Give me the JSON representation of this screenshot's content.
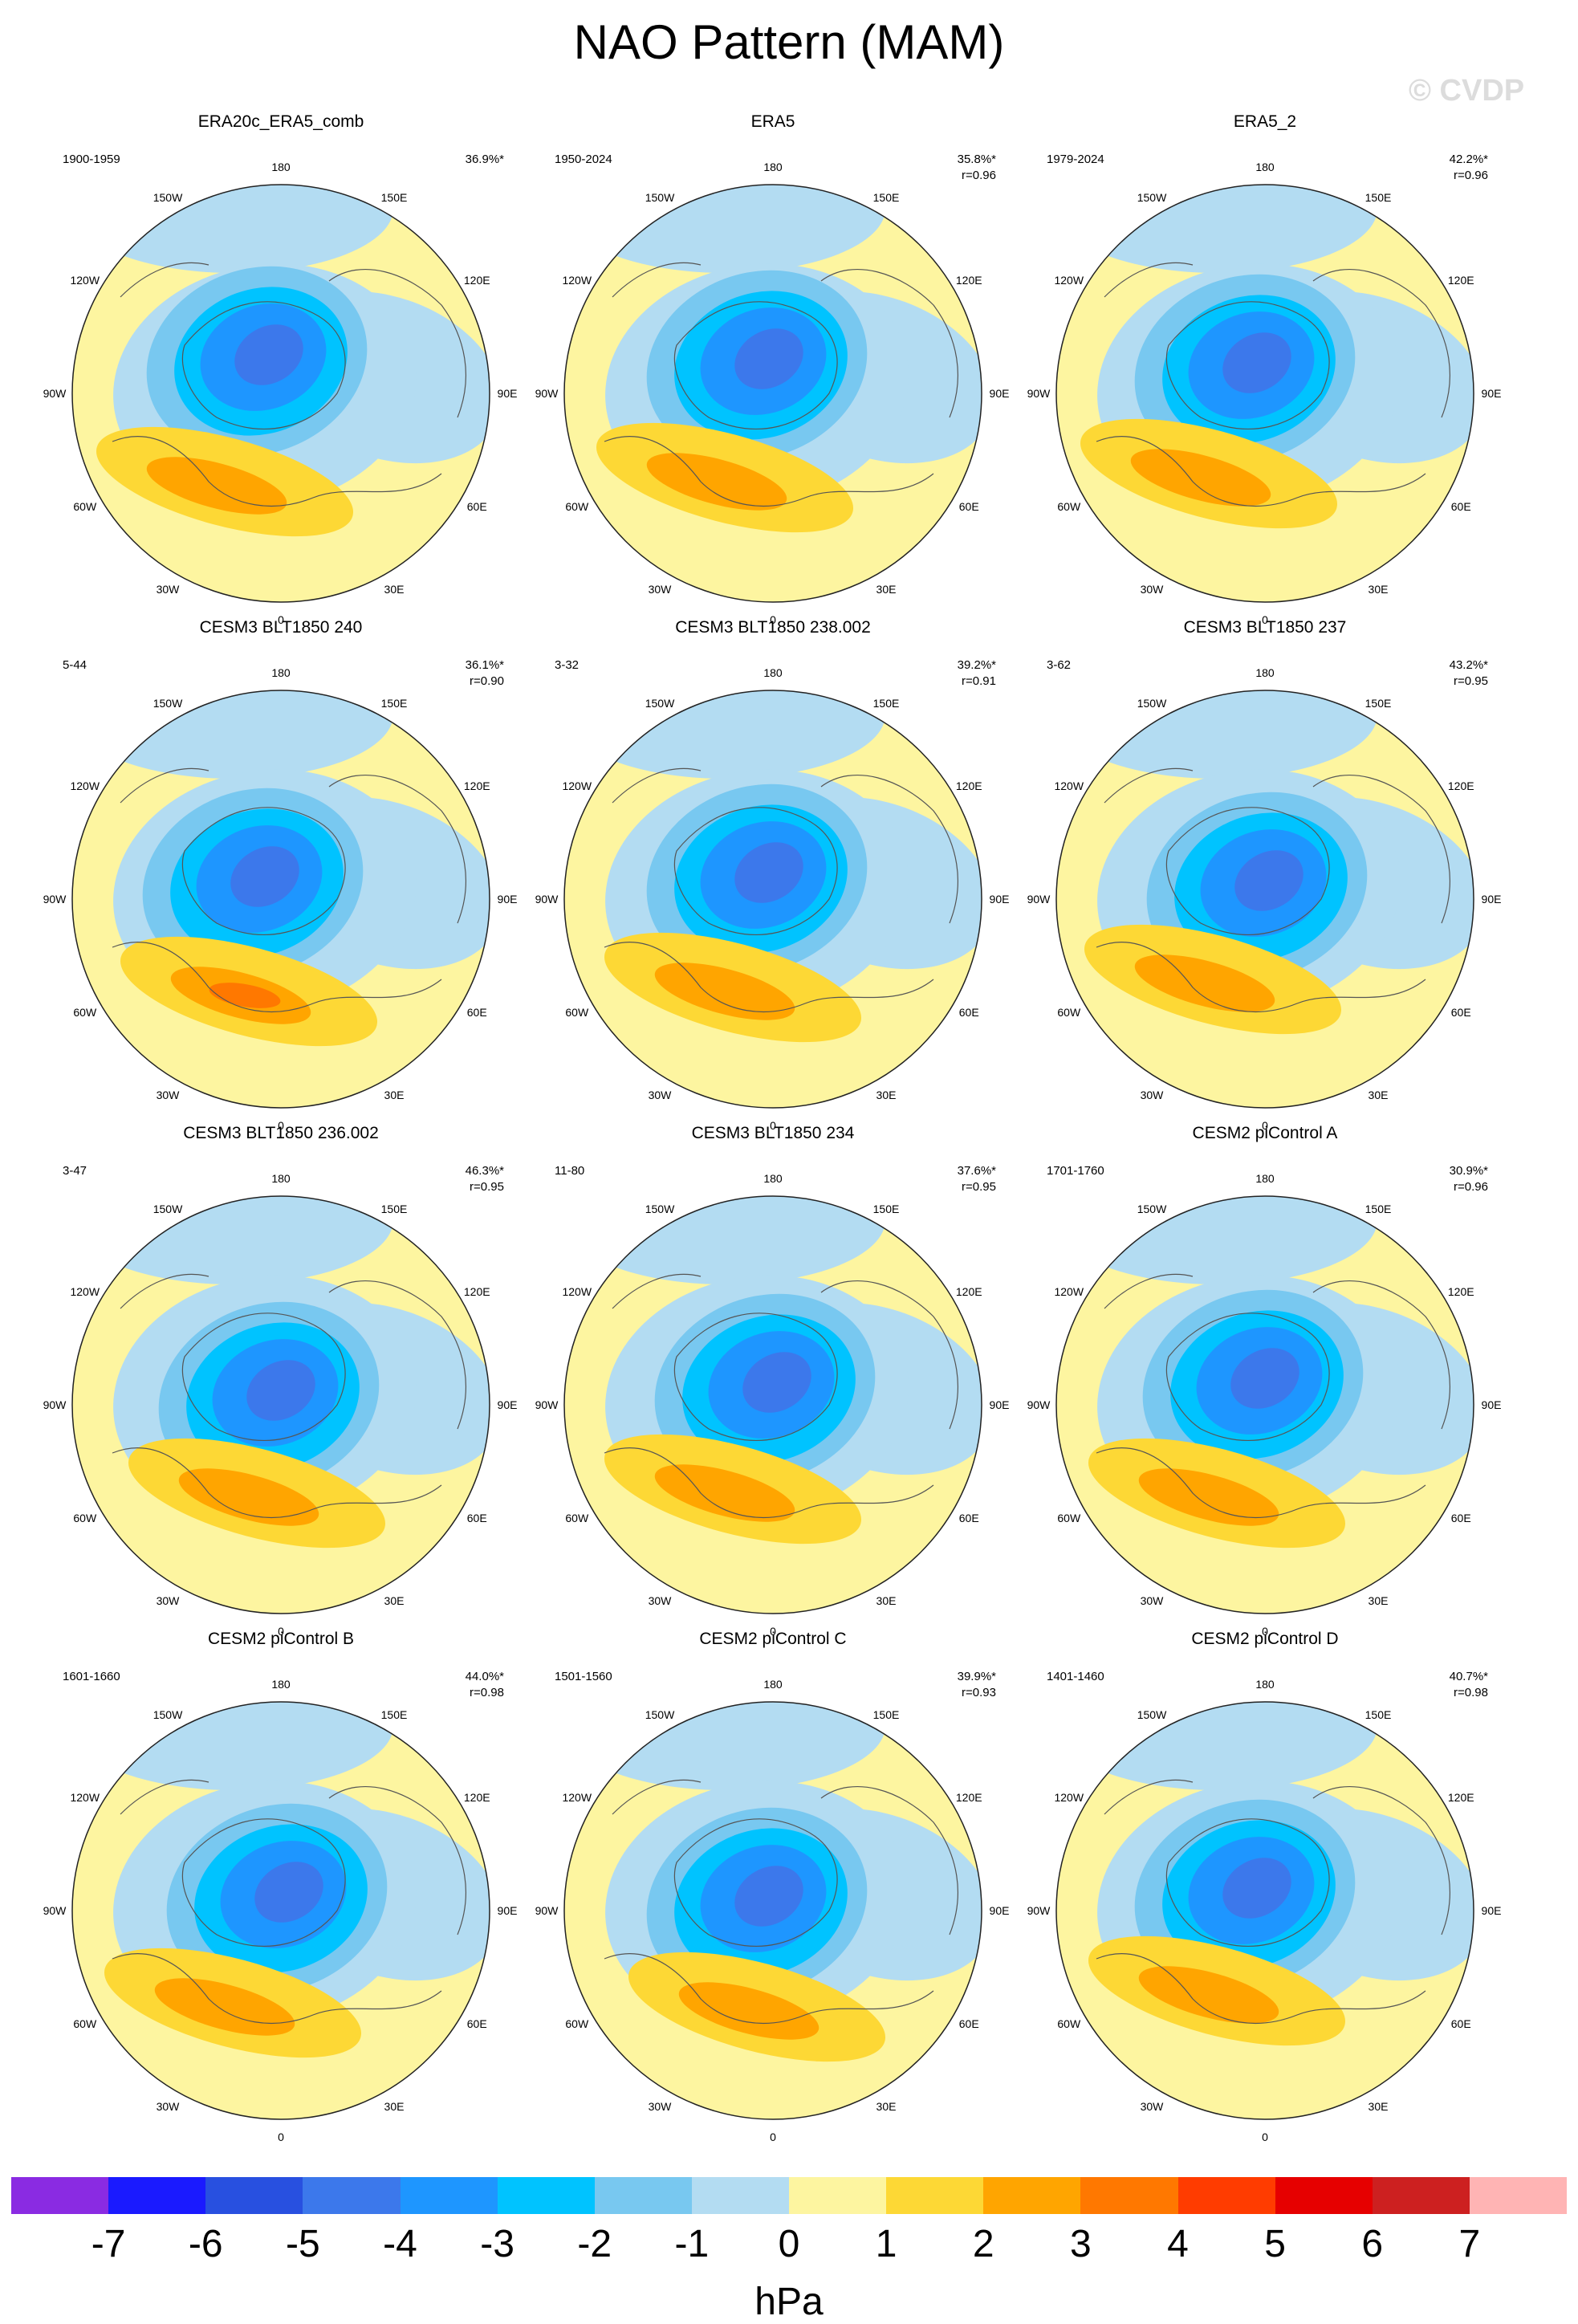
{
  "title": "NAO Pattern (MAM)",
  "watermark": "© CVDP",
  "colors": {
    "ocean_land_background": "#fdf5a0",
    "negative_light": "#b3dcf2",
    "positive_light": "#fdd835"
  },
  "lon_labels": [
    "180",
    "150E",
    "120E",
    "90E",
    "60E",
    "30E",
    "0",
    "30W",
    "60W",
    "90W",
    "120W",
    "150W"
  ],
  "panels": [
    {
      "title": "ERA20c_ERA5_comb",
      "period": "1900-1959",
      "pct": "36.9%*",
      "r": "",
      "shape": 0
    },
    {
      "title": "ERA5",
      "period": "1950-2024",
      "pct": "35.8%*",
      "r": "r=0.96",
      "shape": 1
    },
    {
      "title": "ERA5_2",
      "period": "1979-2024",
      "pct": "42.2%*",
      "r": "r=0.96",
      "shape": 2
    },
    {
      "title": "CESM3 BLT1850 240",
      "period": "5-44",
      "pct": "36.1%*",
      "r": "r=0.90",
      "shape": 3
    },
    {
      "title": "CESM3 BLT1850 238.002",
      "period": "3-32",
      "pct": "39.2%*",
      "r": "r=0.91",
      "shape": 4
    },
    {
      "title": "CESM3 BLT1850 237",
      "period": "3-62",
      "pct": "43.2%*",
      "r": "r=0.95",
      "shape": 5
    },
    {
      "title": "CESM3 BLT1850 236.002",
      "period": "3-47",
      "pct": "46.3%*",
      "r": "r=0.95",
      "shape": 6
    },
    {
      "title": "CESM3 BLT1850 234",
      "period": "11-80",
      "pct": "37.6%*",
      "r": "r=0.95",
      "shape": 7
    },
    {
      "title": "CESM2 piControl A",
      "period": "1701-1760",
      "pct": "30.9%*",
      "r": "r=0.96",
      "shape": 8
    },
    {
      "title": "CESM2 piControl B",
      "period": "1601-1660",
      "pct": "44.0%*",
      "r": "r=0.98",
      "shape": 9
    },
    {
      "title": "CESM2 piControl C",
      "period": "1501-1560",
      "pct": "39.9%*",
      "r": "r=0.93",
      "shape": 10
    },
    {
      "title": "CESM2 piControl D",
      "period": "1401-1460",
      "pct": "40.7%*",
      "r": "r=0.98",
      "shape": 11
    }
  ],
  "colorbar": {
    "colors": [
      "#8a2be2",
      "#1a1aff",
      "#2850e0",
      "#3c78eb",
      "#1e96ff",
      "#00c3ff",
      "#78c8f0",
      "#b3dcf2",
      "#fdf5a0",
      "#fdd835",
      "#ffa500",
      "#ff7800",
      "#ff3c00",
      "#e60000",
      "#cd2020",
      "#ffb4b4"
    ],
    "labels": [
      "-7",
      "-6",
      "-5",
      "-4",
      "-3",
      "-2",
      "-1",
      "0",
      "1",
      "2",
      "3",
      "4",
      "5",
      "6",
      "7"
    ],
    "units": "hPa"
  }
}
